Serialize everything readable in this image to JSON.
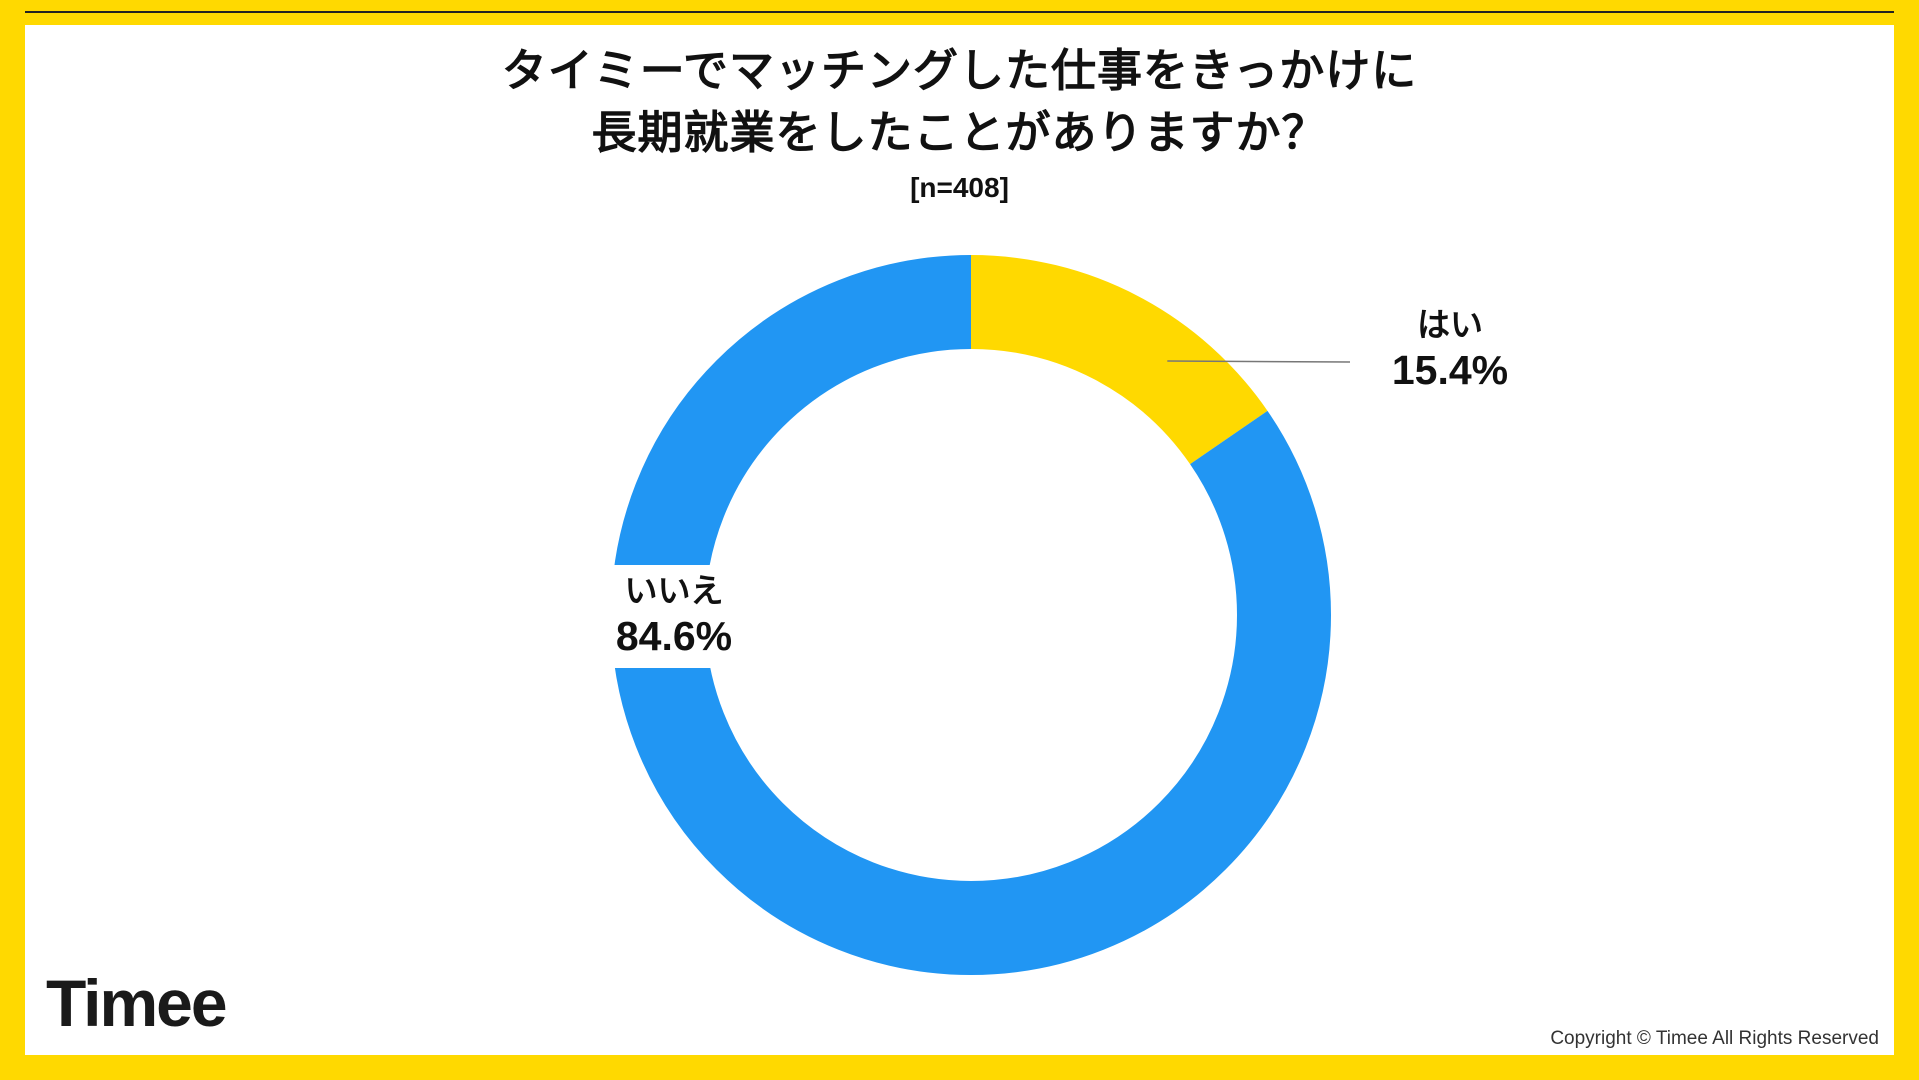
{
  "frame": {
    "border_color": "#FFD900",
    "background": "#ffffff"
  },
  "title": {
    "line1": "タイミーでマッチングした仕事をきっかけに",
    "line2": "長期就業をしたことがありますか？",
    "sample": "[n=408]"
  },
  "footer": {
    "logo": "Timee",
    "copyright": "Copyright © Timee All Rights Reserved"
  },
  "chart_data": {
    "type": "pie",
    "subtype": "donut",
    "title": "タイミーでマッチングした仕事をきっかけに長期就業をしたことがありますか？",
    "sample_size": 408,
    "start_angle_deg": 0,
    "direction": "clockwise",
    "slices": [
      {
        "label": "はい",
        "value": 15.4,
        "display": "15.4%",
        "color": "#FFD900"
      },
      {
        "label": "いいえ",
        "value": 84.6,
        "display": "84.6%",
        "color": "#2196F3"
      }
    ],
    "legend_position": "callout-labels",
    "leader_line_color": "#777777"
  }
}
